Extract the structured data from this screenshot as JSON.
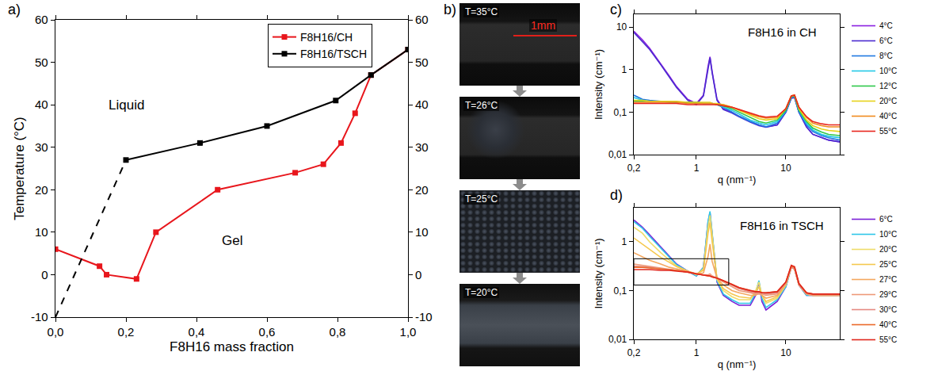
{
  "chart_data": [
    {
      "panel_label": "a)",
      "type": "line",
      "x_label": "F8H16 mass fraction",
      "y_label": "Temperature (°C)",
      "xlim": [
        0,
        1
      ],
      "xticks": [
        {
          "value": 0,
          "label": "0,0"
        },
        {
          "value": 0.2,
          "label": "0,2"
        },
        {
          "value": 0.4,
          "label": "0,4"
        },
        {
          "value": 0.6,
          "label": "0,6"
        },
        {
          "value": 0.8,
          "label": "0,8"
        },
        {
          "value": 1,
          "label": "1,0"
        }
      ],
      "ylim": [
        -10,
        60
      ],
      "yticks": [
        -10,
        0,
        10,
        20,
        30,
        40,
        50,
        60
      ],
      "y2lim": [
        -10,
        60
      ],
      "y2ticks": [
        -10,
        0,
        10,
        20,
        30,
        40,
        50,
        60
      ],
      "annotations": [
        "Liquid",
        "Gel"
      ],
      "legend": "top right",
      "marker": "square",
      "series": [
        {
          "name": "F8H16/CH",
          "color": "#e8161c",
          "line_style": "solid",
          "x": [
            0,
            0.125,
            0.145,
            0.23,
            0.285,
            0.46,
            0.68,
            0.76,
            0.81,
            0.85,
            0.895,
            1.0
          ],
          "values": [
            6,
            2,
            0,
            -1,
            10,
            20,
            24,
            26,
            31,
            38,
            47,
            53
          ]
        },
        {
          "name": "F8H16/TSCH",
          "color": "#000000",
          "line_style": "solid",
          "x": [
            0.2,
            0.41,
            0.6,
            0.795,
            0.895,
            1.0
          ],
          "values": [
            27,
            31,
            35,
            41,
            47,
            53
          ]
        },
        {
          "color": "#000000",
          "line_style": "dash",
          "marker": "none",
          "x": [
            0,
            0.2
          ],
          "values": [
            -10,
            27
          ]
        }
      ]
    },
    {
      "panel_label": "c)",
      "type": "line",
      "log": true,
      "title": "F8H16 in CH",
      "x_label": "q (nm⁻¹)",
      "y_label": "Intensity (cm⁻¹)",
      "x": [
        0.2,
        0.25,
        0.3,
        0.4,
        0.5,
        0.6,
        0.8,
        1.0,
        1.2,
        1.35,
        1.42,
        1.5,
        1.7,
        2,
        2.5,
        3,
        4,
        5,
        6,
        8,
        10,
        11.5,
        12.5,
        14,
        17,
        20,
        25,
        30,
        40
      ],
      "xlim": [
        0.2,
        40
      ],
      "xticks": [
        {
          "value": 0.2,
          "label": "0,2"
        },
        1,
        10
      ],
      "ylim": [
        0.01,
        20
      ],
      "yticks": [
        {
          "value": 0.01,
          "label": "0,01"
        },
        {
          "value": 0.1,
          "label": "0,1"
        },
        1,
        10
      ],
      "legend": "right",
      "series": [
        {
          "name": "4°C",
          "color": "#8a1fe0",
          "values": [
            8,
            5,
            3.2,
            1.4,
            0.7,
            0.4,
            0.2,
            0.16,
            0.25,
            1.2,
            2.0,
            0.9,
            0.2,
            0.12,
            0.1,
            0.08,
            0.06,
            0.05,
            0.045,
            0.05,
            0.1,
            0.22,
            0.22,
            0.1,
            0.045,
            0.03,
            0.025,
            0.022,
            0.02
          ]
        },
        {
          "name": "6°C",
          "color": "#4b2bd0",
          "values": [
            7.5,
            4.6,
            3.0,
            1.3,
            0.66,
            0.38,
            0.19,
            0.15,
            0.24,
            1.1,
            1.9,
            0.85,
            0.19,
            0.115,
            0.095,
            0.078,
            0.058,
            0.048,
            0.044,
            0.05,
            0.1,
            0.21,
            0.22,
            0.1,
            0.045,
            0.03,
            0.025,
            0.022,
            0.02
          ]
        },
        {
          "name": "8°C",
          "color": "#1f78e0",
          "values": [
            0.25,
            0.2,
            0.19,
            0.18,
            0.18,
            0.17,
            0.17,
            0.16,
            0.16,
            0.16,
            0.16,
            0.16,
            0.15,
            0.13,
            0.1,
            0.08,
            0.06,
            0.05,
            0.045,
            0.055,
            0.1,
            0.22,
            0.23,
            0.1,
            0.05,
            0.035,
            0.028,
            0.025,
            0.022
          ]
        },
        {
          "name": "10°C",
          "color": "#22c8e6",
          "values": [
            0.22,
            0.19,
            0.18,
            0.18,
            0.18,
            0.17,
            0.17,
            0.17,
            0.16,
            0.16,
            0.16,
            0.16,
            0.15,
            0.13,
            0.11,
            0.09,
            0.065,
            0.055,
            0.05,
            0.06,
            0.11,
            0.23,
            0.24,
            0.11,
            0.055,
            0.038,
            0.03,
            0.027,
            0.025
          ]
        },
        {
          "name": "12°C",
          "color": "#2ec84a",
          "values": [
            0.18,
            0.18,
            0.18,
            0.18,
            0.17,
            0.17,
            0.17,
            0.17,
            0.16,
            0.16,
            0.16,
            0.16,
            0.15,
            0.14,
            0.12,
            0.1,
            0.075,
            0.06,
            0.055,
            0.065,
            0.11,
            0.23,
            0.24,
            0.11,
            0.06,
            0.042,
            0.034,
            0.03,
            0.028
          ]
        },
        {
          "name": "20°C",
          "color": "#e6d21a",
          "values": [
            0.19,
            0.19,
            0.18,
            0.18,
            0.18,
            0.18,
            0.17,
            0.17,
            0.17,
            0.17,
            0.17,
            0.16,
            0.16,
            0.15,
            0.13,
            0.11,
            0.085,
            0.07,
            0.065,
            0.07,
            0.12,
            0.24,
            0.25,
            0.12,
            0.065,
            0.048,
            0.04,
            0.037,
            0.035
          ]
        },
        {
          "name": "40°C",
          "color": "#f08a1e",
          "values": [
            0.17,
            0.17,
            0.17,
            0.17,
            0.17,
            0.17,
            0.16,
            0.16,
            0.16,
            0.16,
            0.16,
            0.16,
            0.15,
            0.15,
            0.13,
            0.115,
            0.09,
            0.078,
            0.072,
            0.075,
            0.12,
            0.24,
            0.25,
            0.13,
            0.075,
            0.055,
            0.048,
            0.045,
            0.045
          ]
        },
        {
          "name": "55°C",
          "color": "#e8261e",
          "values": [
            0.16,
            0.16,
            0.16,
            0.16,
            0.16,
            0.16,
            0.15,
            0.15,
            0.15,
            0.15,
            0.15,
            0.15,
            0.15,
            0.14,
            0.13,
            0.115,
            0.095,
            0.082,
            0.076,
            0.08,
            0.12,
            0.24,
            0.25,
            0.13,
            0.078,
            0.06,
            0.053,
            0.05,
            0.05
          ]
        }
      ]
    },
    {
      "panel_label": "d)",
      "type": "line",
      "log": true,
      "title": "F8H16 in TSCH",
      "x_label": "q (nm⁻¹)",
      "y_label": "Intensity (cm⁻¹)",
      "x": [
        0.2,
        0.25,
        0.3,
        0.4,
        0.5,
        0.6,
        0.8,
        1.0,
        1.2,
        1.35,
        1.42,
        1.5,
        1.7,
        2,
        2.5,
        3,
        4,
        4.6,
        5,
        5.4,
        6,
        8,
        10,
        11.5,
        12.5,
        14,
        17,
        20,
        25,
        30,
        40
      ],
      "xlim": [
        0.2,
        40
      ],
      "xticks": [
        {
          "value": 0.2,
          "label": "0,2"
        },
        1,
        10
      ],
      "ylim": [
        0.01,
        5
      ],
      "yticks": [
        {
          "value": 0.01,
          "label": "0,01"
        },
        {
          "value": 0.1,
          "label": "0,1"
        },
        1
      ],
      "legend": "right",
      "highlight_box": {
        "x": [
          0.2,
          2.3
        ],
        "y": [
          0.13,
          0.45
        ]
      },
      "series": [
        {
          "name": "6°C",
          "color": "#7a1fd6",
          "values": [
            2.8,
            2.0,
            1.4,
            0.8,
            0.5,
            0.35,
            0.25,
            0.2,
            0.3,
            2.5,
            4.0,
            1.5,
            0.15,
            0.08,
            0.06,
            0.05,
            0.05,
            0.08,
            0.15,
            0.06,
            0.04,
            0.06,
            0.12,
            0.3,
            0.28,
            0.13,
            0.08,
            0.08,
            0.08,
            0.08,
            0.08
          ]
        },
        {
          "name": "10°C",
          "color": "#2ec6e8",
          "values": [
            2.6,
            1.9,
            1.3,
            0.75,
            0.48,
            0.34,
            0.25,
            0.2,
            0.3,
            2.6,
            4.2,
            1.6,
            0.16,
            0.085,
            0.065,
            0.055,
            0.055,
            0.09,
            0.16,
            0.07,
            0.045,
            0.065,
            0.12,
            0.3,
            0.28,
            0.13,
            0.08,
            0.08,
            0.08,
            0.08,
            0.08
          ]
        },
        {
          "name": "20°C",
          "color": "#efdc6a",
          "values": [
            2.0,
            1.5,
            1.0,
            0.6,
            0.42,
            0.32,
            0.25,
            0.21,
            0.28,
            2.0,
            3.5,
            1.3,
            0.17,
            0.1,
            0.075,
            0.065,
            0.065,
            0.1,
            0.15,
            0.08,
            0.055,
            0.07,
            0.13,
            0.3,
            0.28,
            0.13,
            0.085,
            0.08,
            0.08,
            0.08,
            0.08
          ]
        },
        {
          "name": "25°C",
          "color": "#f5c84e",
          "values": [
            1.2,
            0.9,
            0.7,
            0.48,
            0.38,
            0.31,
            0.25,
            0.22,
            0.26,
            1.5,
            2.5,
            1.0,
            0.18,
            0.11,
            0.085,
            0.075,
            0.07,
            0.09,
            0.12,
            0.08,
            0.06,
            0.075,
            0.13,
            0.3,
            0.28,
            0.13,
            0.085,
            0.08,
            0.08,
            0.08,
            0.08
          ]
        },
        {
          "name": "27°C",
          "color": "#f4a860",
          "values": [
            0.6,
            0.5,
            0.42,
            0.35,
            0.3,
            0.28,
            0.25,
            0.22,
            0.23,
            0.5,
            0.9,
            0.4,
            0.18,
            0.13,
            0.1,
            0.09,
            0.08,
            0.08,
            0.09,
            0.08,
            0.07,
            0.08,
            0.14,
            0.3,
            0.28,
            0.13,
            0.085,
            0.08,
            0.08,
            0.08,
            0.08
          ]
        },
        {
          "name": "29°C",
          "color": "#ee9a78",
          "values": [
            0.35,
            0.33,
            0.31,
            0.29,
            0.27,
            0.26,
            0.24,
            0.22,
            0.21,
            0.21,
            0.22,
            0.2,
            0.18,
            0.15,
            0.12,
            0.1,
            0.09,
            0.085,
            0.085,
            0.085,
            0.08,
            0.085,
            0.14,
            0.3,
            0.28,
            0.13,
            0.085,
            0.08,
            0.08,
            0.08,
            0.08
          ]
        },
        {
          "name": "30°C",
          "color": "#e58a82",
          "values": [
            0.32,
            0.31,
            0.3,
            0.28,
            0.27,
            0.26,
            0.24,
            0.22,
            0.21,
            0.2,
            0.2,
            0.19,
            0.18,
            0.16,
            0.13,
            0.11,
            0.095,
            0.09,
            0.09,
            0.09,
            0.085,
            0.09,
            0.15,
            0.3,
            0.28,
            0.13,
            0.09,
            0.085,
            0.085,
            0.085,
            0.085
          ]
        },
        {
          "name": "40°C",
          "color": "#ea6a2a",
          "values": [
            0.3,
            0.3,
            0.29,
            0.28,
            0.27,
            0.26,
            0.24,
            0.22,
            0.21,
            0.2,
            0.2,
            0.19,
            0.18,
            0.16,
            0.135,
            0.115,
            0.1,
            0.095,
            0.095,
            0.09,
            0.09,
            0.095,
            0.15,
            0.32,
            0.3,
            0.14,
            0.09,
            0.085,
            0.085,
            0.085,
            0.085
          ]
        },
        {
          "name": "55°C",
          "color": "#e0261c",
          "values": [
            0.27,
            0.27,
            0.27,
            0.26,
            0.26,
            0.25,
            0.24,
            0.22,
            0.21,
            0.2,
            0.2,
            0.19,
            0.18,
            0.16,
            0.135,
            0.115,
            0.1,
            0.095,
            0.095,
            0.09,
            0.09,
            0.095,
            0.15,
            0.33,
            0.31,
            0.14,
            0.09,
            0.085,
            0.085,
            0.085,
            0.085
          ]
        }
      ]
    }
  ],
  "micrographs": {
    "panel_label": "b)",
    "scale_bar": "1mm",
    "frames": [
      "T=35°C",
      "T=26°C",
      "T=25°C",
      "T=20°C"
    ]
  }
}
